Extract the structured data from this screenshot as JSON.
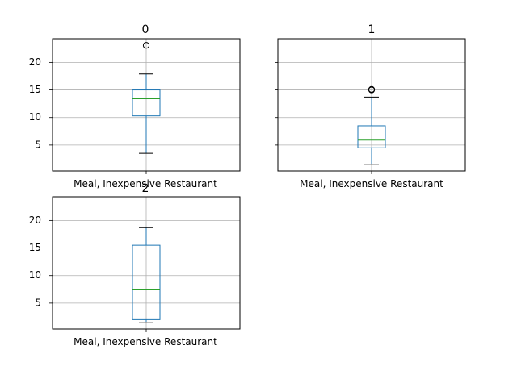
{
  "chart_data": [
    {
      "type": "box",
      "title": "0",
      "categories": [
        "Meal, Inexpensive Restaurant"
      ],
      "box": {
        "whisker_low": 3.5,
        "q1": 10.3,
        "median": 13.4,
        "q3": 15.0,
        "whisker_high": 17.9,
        "outliers": [
          23.1
        ]
      },
      "ylim": [
        0.3,
        24.3
      ],
      "yticks": [
        "5",
        "10",
        "15",
        "20"
      ],
      "grid": true
    },
    {
      "type": "box",
      "title": "1",
      "categories": [
        "Meal, Inexpensive Restaurant"
      ],
      "box": {
        "whisker_low": 1.5,
        "q1": 4.5,
        "median": 5.9,
        "q3": 8.5,
        "whisker_high": 13.7,
        "outliers": [
          15.0,
          15.1
        ]
      },
      "ylim": [
        0.3,
        24.3
      ],
      "yticks": [
        "5",
        "10",
        "15",
        "20"
      ],
      "grid": true
    },
    {
      "type": "box",
      "title": "2",
      "categories": [
        "Meal, Inexpensive Restaurant"
      ],
      "box": {
        "whisker_low": 1.5,
        "q1": 2.0,
        "median": 7.4,
        "q3": 15.5,
        "whisker_high": 18.7,
        "outliers": []
      },
      "ylim": [
        0.3,
        24.3
      ],
      "yticks": [
        "5",
        "10",
        "15",
        "20"
      ],
      "grid": true
    }
  ],
  "colors": {
    "box": "#1f77b4",
    "median": "#2ca02c",
    "whisker": "#000000",
    "grid": "#b0b0b0"
  }
}
